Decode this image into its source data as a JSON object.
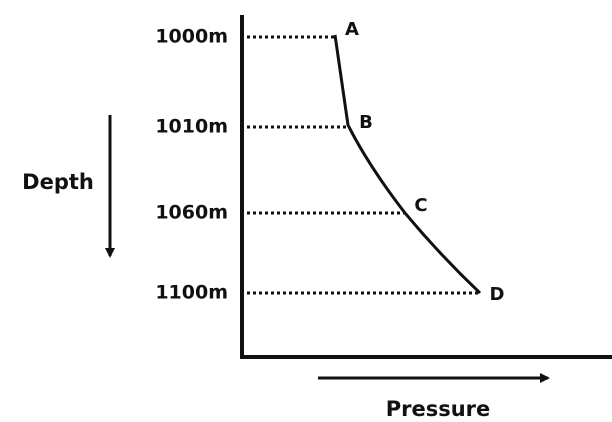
{
  "depth_levels": [
    {
      "label": "1000m",
      "point": "A"
    },
    {
      "label": "1010m",
      "point": "B"
    },
    {
      "label": "1060m",
      "point": "C"
    },
    {
      "label": "1100m",
      "point": "D"
    }
  ],
  "axis_labels": {
    "y": "Depth",
    "x": "Pressure"
  }
}
